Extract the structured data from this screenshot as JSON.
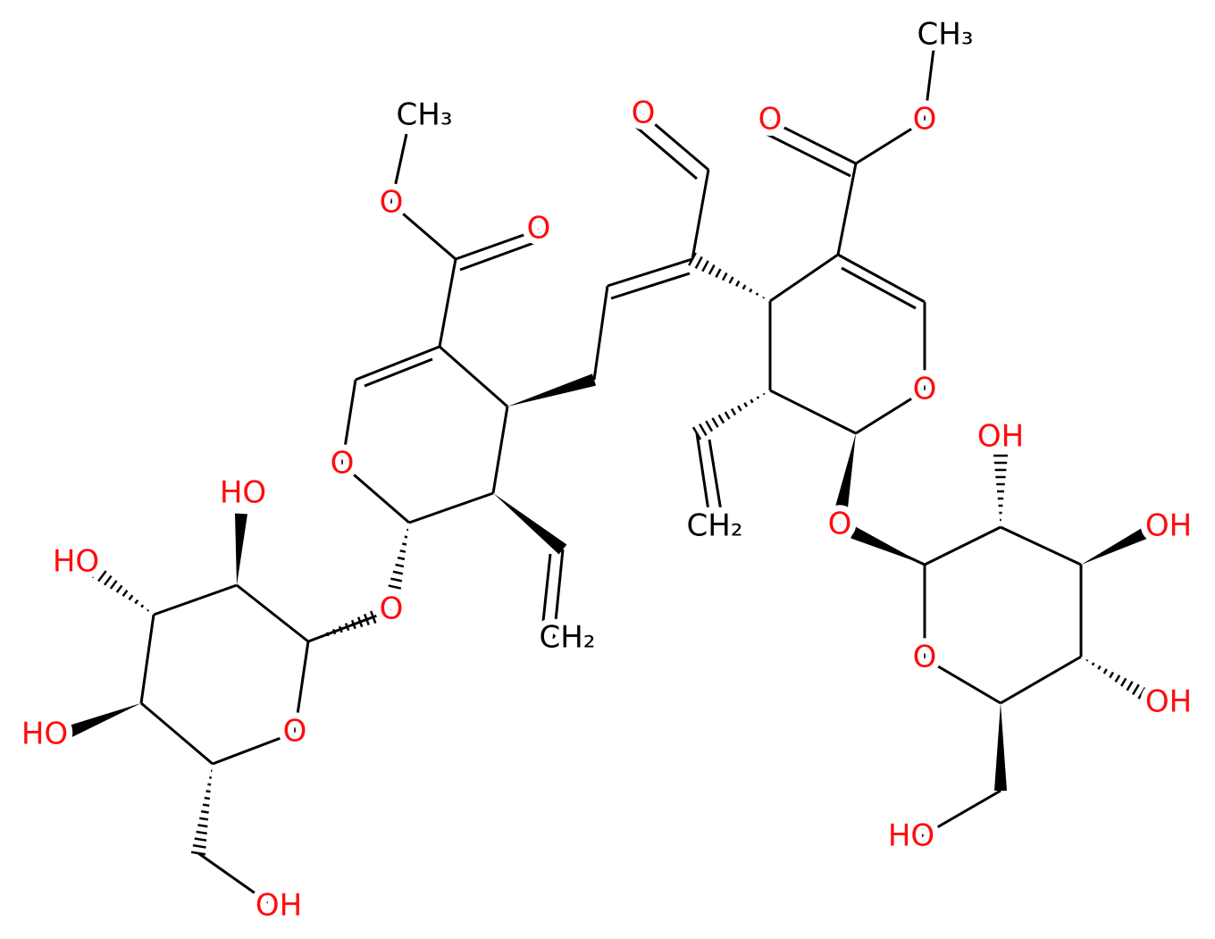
{
  "labels": [
    "CH₃",
    "O",
    "O",
    "O",
    "O",
    "CH₂",
    "HO",
    "HO",
    "HO",
    "O",
    "OH",
    "O",
    "O",
    "O",
    "CH₃",
    "O",
    "CH₂",
    "O",
    "OH",
    "OH",
    "OH",
    "O",
    "HO"
  ]
}
